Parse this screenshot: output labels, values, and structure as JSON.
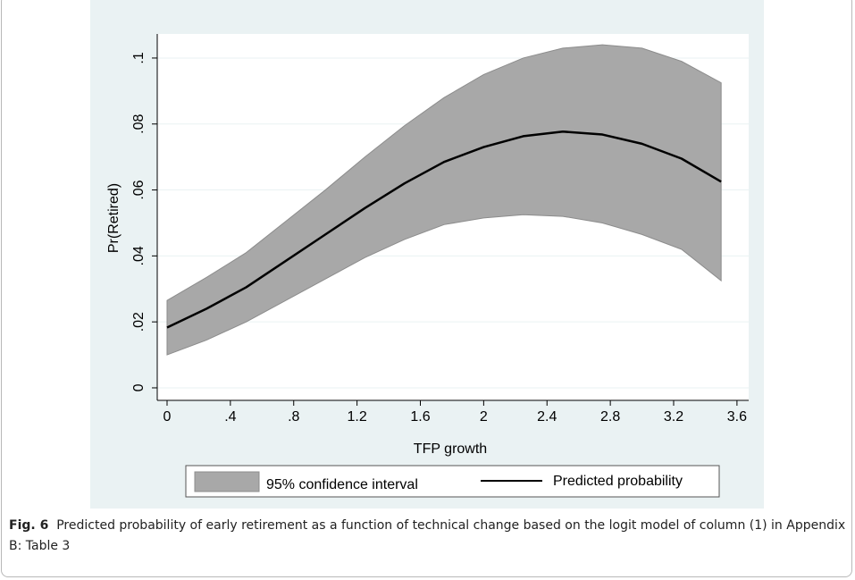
{
  "chart_data": {
    "type": "line",
    "xlabel": "TFP growth",
    "ylabel": "Pr(Retired)",
    "x": [
      0,
      0.25,
      0.5,
      0.75,
      1.0,
      1.25,
      1.5,
      1.75,
      2.0,
      2.25,
      2.5,
      2.75,
      3.0,
      3.25,
      3.5
    ],
    "series": [
      {
        "name": "95% confidence interval",
        "type": "band",
        "color": "#a8a8a8",
        "upper": [
          0.0265,
          0.0335,
          0.041,
          0.0505,
          0.06,
          0.07,
          0.0795,
          0.088,
          0.095,
          0.1,
          0.103,
          0.104,
          0.103,
          0.099,
          0.0925
        ],
        "lower": [
          0.01,
          0.0145,
          0.02,
          0.0265,
          0.033,
          0.0395,
          0.045,
          0.0495,
          0.0515,
          0.0525,
          0.052,
          0.05,
          0.0465,
          0.042,
          0.0325
        ]
      },
      {
        "name": "Predicted probability",
        "color": "#000000",
        "values": [
          0.0183,
          0.024,
          0.0305,
          0.0385,
          0.0465,
          0.0545,
          0.062,
          0.0685,
          0.073,
          0.0763,
          0.0777,
          0.0768,
          0.074,
          0.0695,
          0.0625
        ]
      }
    ],
    "xlim": [
      -0.062,
      3.674
    ],
    "ylim": [
      -0.0038,
      0.1073
    ],
    "xticks": [
      0,
      {
        "value": 0.4,
        "label": ".4"
      },
      {
        "value": 0.8,
        "label": ".8"
      },
      1.2,
      1.6,
      2,
      2.4,
      2.8,
      3.2,
      3.6
    ],
    "yticks": [
      0,
      {
        "value": 0.02,
        "label": ".02"
      },
      {
        "value": 0.04,
        "label": ".04"
      },
      {
        "value": 0.06,
        "label": ".06"
      },
      {
        "value": 0.08,
        "label": ".08"
      },
      {
        "value": 0.1,
        "label": ".1"
      }
    ],
    "grid": true,
    "legend": "bottom"
  },
  "figure": {
    "label": "Fig. 6",
    "caption": "Predicted probability of early retirement as a function of technical change based on the logit model of column (1) in Appendix B: Table 3"
  }
}
